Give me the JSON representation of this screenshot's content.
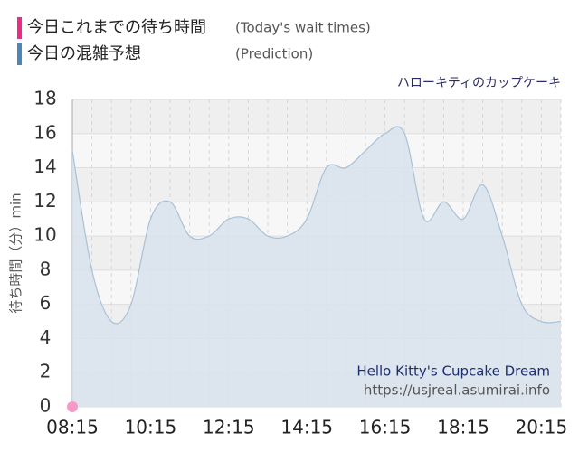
{
  "chart_data": {
    "type": "area",
    "subtitle": "ハローキティのカップケーキ",
    "y_label": "待ち時間（分）min",
    "annotations": [
      "Hello Kitty's Cupcake Dream",
      "https://usjreal.asumirai.info"
    ],
    "categories": [
      "08:15",
      null,
      null,
      null,
      "10:15",
      null,
      null,
      null,
      "12:15",
      null,
      null,
      null,
      "14:15",
      null,
      null,
      null,
      "16:15",
      null,
      null,
      null,
      "18:15",
      null,
      null,
      null,
      "20:15",
      null
    ],
    "series": [
      {
        "name": "今日これまでの待ち時間",
        "note": "(Today's wait times)",
        "color": "#f0288c",
        "marker_color": "#f59ac8",
        "values": [
          0,
          null,
          null,
          null,
          null,
          null,
          null,
          null,
          null,
          null,
          null,
          null,
          null,
          null,
          null,
          null,
          null,
          null,
          null,
          null,
          null,
          null,
          null,
          null,
          null,
          null
        ]
      },
      {
        "name": "今日の混雑予想",
        "note": "(Prediction)",
        "color": "#4f86b8",
        "fill_color": "#d8e3ec",
        "line_color": "#a9c1d6",
        "values": [
          15,
          8,
          5,
          6,
          11,
          12,
          10,
          10,
          11,
          11,
          10,
          10,
          11,
          14,
          14,
          15,
          16,
          16,
          11,
          12,
          11,
          13,
          10,
          6,
          5,
          5
        ]
      }
    ],
    "ylim": [
      0,
      18
    ],
    "yticks": [
      0,
      2,
      4,
      6,
      8,
      10,
      12,
      14,
      16,
      18
    ],
    "grid": true
  }
}
